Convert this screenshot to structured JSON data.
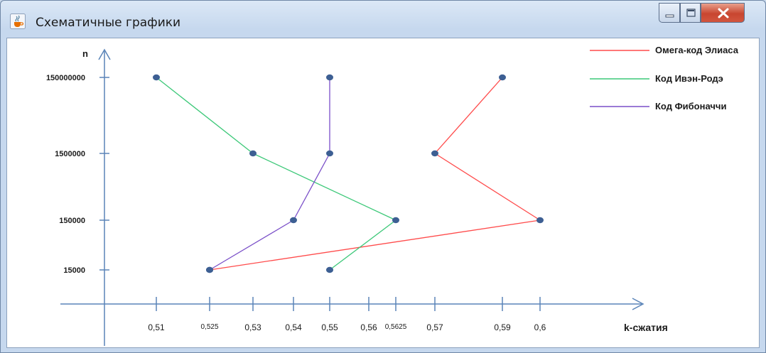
{
  "window": {
    "title": "Схематичные графики",
    "icon": "java-cup-icon",
    "controls": [
      "minimize-icon",
      "maximize-icon",
      "close-icon"
    ]
  },
  "chart_data": {
    "type": "line",
    "xlabel": "k-сжатия",
    "ylabel": "n",
    "x_ticks": [
      "0,51",
      "0,525",
      "0,53",
      "0,54",
      "0,55",
      "0,56",
      "0,5625",
      "0,57",
      "0,59",
      "0,6"
    ],
    "y_ticks": [
      "150000000",
      "1500000",
      "150000",
      "15000"
    ],
    "axis_note": "tick spacing is schematic (non-proportional)",
    "grid": false,
    "legend_position": "top-right",
    "series": [
      {
        "name": "Омега-код Элиаса",
        "color": "#ff4b4b",
        "points": [
          {
            "x": "0,525",
            "y": "15000"
          },
          {
            "x": "0,6",
            "y": "150000"
          },
          {
            "x": "0,57",
            "y": "1500000"
          },
          {
            "x": "0,59",
            "y": "150000000"
          }
        ]
      },
      {
        "name": "Код Ивэн-Родэ",
        "color": "#3cc878",
        "points": [
          {
            "x": "0,55",
            "y": "15000"
          },
          {
            "x": "0,5625",
            "y": "150000"
          },
          {
            "x": "0,53",
            "y": "1500000"
          },
          {
            "x": "0,51",
            "y": "150000000"
          }
        ]
      },
      {
        "name": "Код Фибоначчи",
        "color": "#7a4fc8",
        "points": [
          {
            "x": "0,525",
            "y": "15000"
          },
          {
            "x": "0,54",
            "y": "150000"
          },
          {
            "x": "0,55",
            "y": "1500000"
          },
          {
            "x": "0,55",
            "y": "150000000"
          }
        ]
      }
    ],
    "marker_color": "#3d5f93",
    "axis_color": "#5a84b8"
  }
}
